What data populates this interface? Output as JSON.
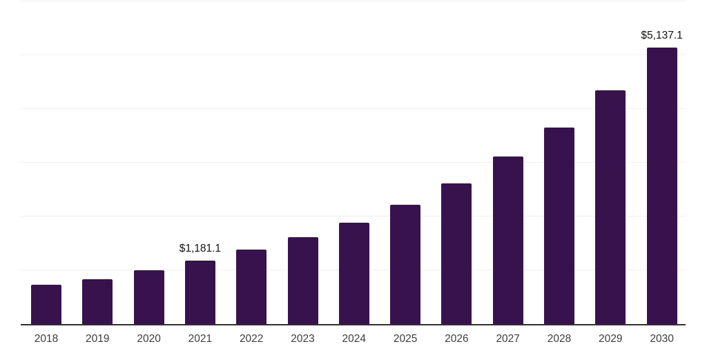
{
  "chart_data": {
    "type": "bar",
    "title": "",
    "xlabel": "",
    "ylabel": "",
    "categories": [
      "2018",
      "2019",
      "2020",
      "2021",
      "2022",
      "2023",
      "2024",
      "2025",
      "2026",
      "2027",
      "2028",
      "2029",
      "2030"
    ],
    "values": [
      730,
      830,
      1000,
      1181.1,
      1380,
      1610,
      1890,
      2220,
      2620,
      3115,
      3655,
      4340,
      5137.1
    ],
    "annotations": [
      {
        "category": "2021",
        "text": "$1,181.1"
      },
      {
        "category": "2030",
        "text": "$5,137.1"
      }
    ],
    "ylim": [
      0,
      6000
    ],
    "gridline_step": 1000,
    "grid": "horizontal",
    "legend": "none",
    "y_axis_labels_visible": false,
    "colors": {
      "bar": "#38124d",
      "axis_line": "#2f2f2f",
      "gridline": "#f0f0f0",
      "tick_label": "#3c3c3c",
      "data_label": "#111111",
      "background": "#ffffff"
    }
  }
}
